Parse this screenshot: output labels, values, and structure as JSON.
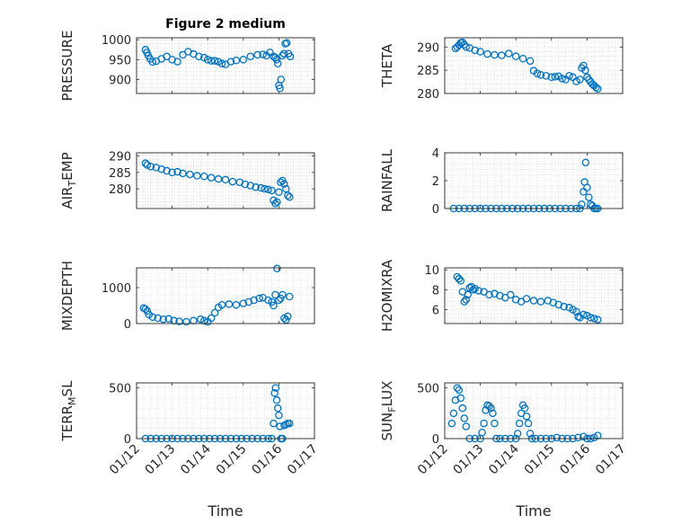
{
  "figure": {
    "title": "Figure 2 medium",
    "xlabel": "Time",
    "xtick_labels": [
      "01/12",
      "01/13",
      "01/14",
      "01/15",
      "01/16",
      "01/17"
    ]
  },
  "chart_data": [
    {
      "id": "pressure",
      "type": "scatter",
      "ylabel": "PRESSURE",
      "title": "Figure 2 medium",
      "xlim": [
        0,
        5
      ],
      "ylim": [
        865,
        1005
      ],
      "yticks": [
        900,
        950,
        1000
      ],
      "x": [
        0.25,
        0.29,
        0.33,
        0.38,
        0.45,
        0.55,
        0.7,
        0.85,
        1.0,
        1.15,
        1.3,
        1.45,
        1.6,
        1.75,
        1.9,
        2.0,
        2.1,
        2.2,
        2.3,
        2.4,
        2.5,
        2.65,
        2.8,
        3.0,
        3.2,
        3.4,
        3.55,
        3.65,
        3.75,
        3.85,
        3.9,
        3.94,
        3.97,
        4.0,
        4.03,
        4.06,
        4.1,
        4.14,
        4.18,
        4.22,
        4.27,
        4.32
      ],
      "y": [
        975,
        968,
        960,
        952,
        944,
        946,
        952,
        958,
        950,
        945,
        962,
        970,
        964,
        958,
        955,
        950,
        947,
        947,
        945,
        940,
        938,
        945,
        948,
        950,
        958,
        962,
        963,
        960,
        968,
        958,
        955,
        950,
        940,
        885,
        878,
        900,
        960,
        965,
        990,
        992,
        965,
        958
      ]
    },
    {
      "id": "theta",
      "type": "scatter",
      "ylabel": "THETA",
      "xlim": [
        0,
        5
      ],
      "ylim": [
        280,
        292
      ],
      "yticks": [
        280,
        285,
        290
      ],
      "x": [
        0.3,
        0.35,
        0.4,
        0.45,
        0.5,
        0.55,
        0.6,
        0.7,
        0.85,
        1.0,
        1.2,
        1.4,
        1.6,
        1.8,
        2.0,
        2.2,
        2.4,
        2.5,
        2.6,
        2.7,
        2.85,
        3.0,
        3.1,
        3.2,
        3.3,
        3.4,
        3.5,
        3.6,
        3.7,
        3.8,
        3.85,
        3.9,
        3.95,
        4.0,
        4.05,
        4.1,
        4.15,
        4.2,
        4.25,
        4.3
      ],
      "y": [
        289.7,
        290.0,
        290.4,
        290.9,
        291.0,
        290.5,
        290.0,
        289.8,
        289.3,
        289.0,
        288.5,
        288.3,
        288.2,
        288.6,
        288.0,
        287.5,
        287.0,
        284.9,
        284.3,
        284.0,
        283.8,
        283.5,
        283.6,
        283.7,
        283.2,
        283.0,
        283.8,
        283.5,
        282.6,
        283.0,
        285.5,
        286.0,
        285.0,
        283.5,
        283.0,
        282.5,
        282.0,
        281.7,
        281.3,
        281.0
      ]
    },
    {
      "id": "air_temp",
      "type": "scatter",
      "ylabel": "AIR_TEMP",
      "xlim": [
        0,
        5
      ],
      "ylim": [
        274,
        291
      ],
      "yticks": [
        280,
        285,
        290
      ],
      "x": [
        0.25,
        0.3,
        0.4,
        0.55,
        0.7,
        0.85,
        1.0,
        1.15,
        1.3,
        1.5,
        1.7,
        1.9,
        2.1,
        2.3,
        2.5,
        2.7,
        2.9,
        3.05,
        3.2,
        3.35,
        3.5,
        3.6,
        3.7,
        3.8,
        3.85,
        3.9,
        3.95,
        4.0,
        4.05,
        4.1,
        4.15,
        4.2,
        4.25,
        4.3
      ],
      "y": [
        287.8,
        287.3,
        286.8,
        286.5,
        286.0,
        285.5,
        285.0,
        285.2,
        284.7,
        284.4,
        284.0,
        283.8,
        283.4,
        283.0,
        282.8,
        282.2,
        282.0,
        281.4,
        281.0,
        280.5,
        280.3,
        280.0,
        279.8,
        279.5,
        276.5,
        275.5,
        276.0,
        279.0,
        282.0,
        282.5,
        281.5,
        280.0,
        278.0,
        277.5
      ]
    },
    {
      "id": "rainfall",
      "type": "scatter",
      "ylabel": "RAINFALL",
      "xlim": [
        0,
        5
      ],
      "ylim": [
        0,
        4
      ],
      "yticks": [
        0,
        2,
        4
      ],
      "x": [
        0.25,
        0.4,
        0.55,
        0.7,
        0.85,
        1.0,
        1.15,
        1.3,
        1.45,
        1.6,
        1.75,
        1.9,
        2.05,
        2.2,
        2.35,
        2.5,
        2.65,
        2.8,
        2.95,
        3.1,
        3.25,
        3.4,
        3.55,
        3.7,
        3.8,
        3.85,
        3.9,
        3.93,
        3.96,
        4.0,
        4.05,
        4.1,
        4.15,
        4.2,
        4.25,
        4.3
      ],
      "y": [
        0,
        0,
        0,
        0,
        0,
        0,
        0,
        0,
        0,
        0,
        0,
        0,
        0,
        0,
        0,
        0,
        0,
        0,
        0,
        0,
        0,
        0,
        0,
        0,
        0,
        0.3,
        1.2,
        1.9,
        3.3,
        1.5,
        0.8,
        0.3,
        0.2,
        0,
        0,
        0
      ]
    },
    {
      "id": "mixdepth",
      "type": "scatter",
      "ylabel": "MIXDEPTH",
      "xlim": [
        0,
        5
      ],
      "ylim": [
        0,
        1550
      ],
      "yticks": [
        0,
        1000
      ],
      "x": [
        0.2,
        0.25,
        0.3,
        0.35,
        0.45,
        0.6,
        0.75,
        0.9,
        1.05,
        1.2,
        1.4,
        1.6,
        1.8,
        1.9,
        2.0,
        2.1,
        2.2,
        2.3,
        2.4,
        2.6,
        2.8,
        3.0,
        3.15,
        3.3,
        3.45,
        3.55,
        3.7,
        3.8,
        3.85,
        3.9,
        3.95,
        4.0,
        4.05,
        4.1,
        4.15,
        4.2,
        4.25,
        4.3
      ],
      "y": [
        430,
        400,
        350,
        250,
        180,
        150,
        120,
        130,
        80,
        60,
        50,
        80,
        120,
        80,
        50,
        150,
        300,
        450,
        520,
        540,
        520,
        560,
        600,
        650,
        700,
        720,
        650,
        600,
        500,
        800,
        1530,
        650,
        700,
        800,
        150,
        100,
        200,
        750
      ]
    },
    {
      "id": "h2omixra",
      "type": "scatter",
      "ylabel": "H2OMIXRA",
      "xlim": [
        0,
        5
      ],
      "ylim": [
        4.6,
        10.2
      ],
      "yticks": [
        6,
        8,
        10
      ],
      "x": [
        0.35,
        0.4,
        0.45,
        0.5,
        0.55,
        0.6,
        0.65,
        0.7,
        0.75,
        0.8,
        0.85,
        0.95,
        1.1,
        1.25,
        1.4,
        1.55,
        1.7,
        1.85,
        2.0,
        2.15,
        2.3,
        2.5,
        2.7,
        2.9,
        3.05,
        3.2,
        3.35,
        3.5,
        3.6,
        3.7,
        3.75,
        3.8,
        3.9,
        4.0,
        4.1,
        4.2,
        4.3
      ],
      "y": [
        9.3,
        9.1,
        8.9,
        7.8,
        6.8,
        7.0,
        7.5,
        8.2,
        8.3,
        8.0,
        8.1,
        7.9,
        7.8,
        7.5,
        7.6,
        7.4,
        7.2,
        7.5,
        7.0,
        6.8,
        7.1,
        6.9,
        6.8,
        6.9,
        6.7,
        6.5,
        6.3,
        6.2,
        6.0,
        5.8,
        5.3,
        5.2,
        5.5,
        5.4,
        5.2,
        5.1,
        5.0
      ]
    },
    {
      "id": "terr_msl",
      "type": "scatter",
      "ylabel": "TERR_MSL",
      "xlim": [
        0,
        5
      ],
      "ylim": [
        0,
        550
      ],
      "yticks": [
        0,
        500
      ],
      "x": [
        0.25,
        0.4,
        0.55,
        0.7,
        0.85,
        1.0,
        1.15,
        1.3,
        1.45,
        1.6,
        1.75,
        1.9,
        2.05,
        2.2,
        2.35,
        2.5,
        2.65,
        2.8,
        2.95,
        3.1,
        3.25,
        3.4,
        3.55,
        3.7,
        3.8,
        3.85,
        3.88,
        3.91,
        3.94,
        3.97,
        4.0,
        4.03,
        4.06,
        4.1,
        4.15,
        4.2,
        4.25,
        4.3
      ],
      "y": [
        0,
        0,
        0,
        0,
        0,
        0,
        0,
        0,
        0,
        0,
        0,
        0,
        0,
        0,
        0,
        0,
        0,
        0,
        0,
        0,
        0,
        0,
        0,
        0,
        0,
        150,
        450,
        500,
        380,
        300,
        230,
        120,
        0,
        0,
        130,
        140,
        150,
        150
      ]
    },
    {
      "id": "sun_flux",
      "type": "scatter",
      "ylabel": "SUN_FLUX",
      "xlim": [
        0,
        5
      ],
      "ylim": [
        0,
        550
      ],
      "yticks": [
        0,
        500
      ],
      "x": [
        0.2,
        0.25,
        0.3,
        0.35,
        0.4,
        0.45,
        0.5,
        0.55,
        0.6,
        0.7,
        0.85,
        1.0,
        1.05,
        1.1,
        1.15,
        1.2,
        1.25,
        1.3,
        1.35,
        1.4,
        1.45,
        1.55,
        1.7,
        1.85,
        2.0,
        2.05,
        2.1,
        2.15,
        2.2,
        2.25,
        2.3,
        2.35,
        2.4,
        2.45,
        2.55,
        2.7,
        2.85,
        3.0,
        3.15,
        3.3,
        3.45,
        3.6,
        3.75,
        3.9,
        4.0,
        4.1,
        4.2,
        4.3
      ],
      "y": [
        150,
        250,
        380,
        500,
        480,
        400,
        300,
        200,
        120,
        0,
        0,
        0,
        60,
        150,
        280,
        330,
        320,
        300,
        250,
        150,
        0,
        0,
        0,
        0,
        0,
        50,
        150,
        250,
        330,
        300,
        220,
        150,
        50,
        0,
        0,
        0,
        0,
        0,
        10,
        0,
        0,
        0,
        10,
        20,
        0,
        0,
        10,
        30
      ]
    }
  ]
}
